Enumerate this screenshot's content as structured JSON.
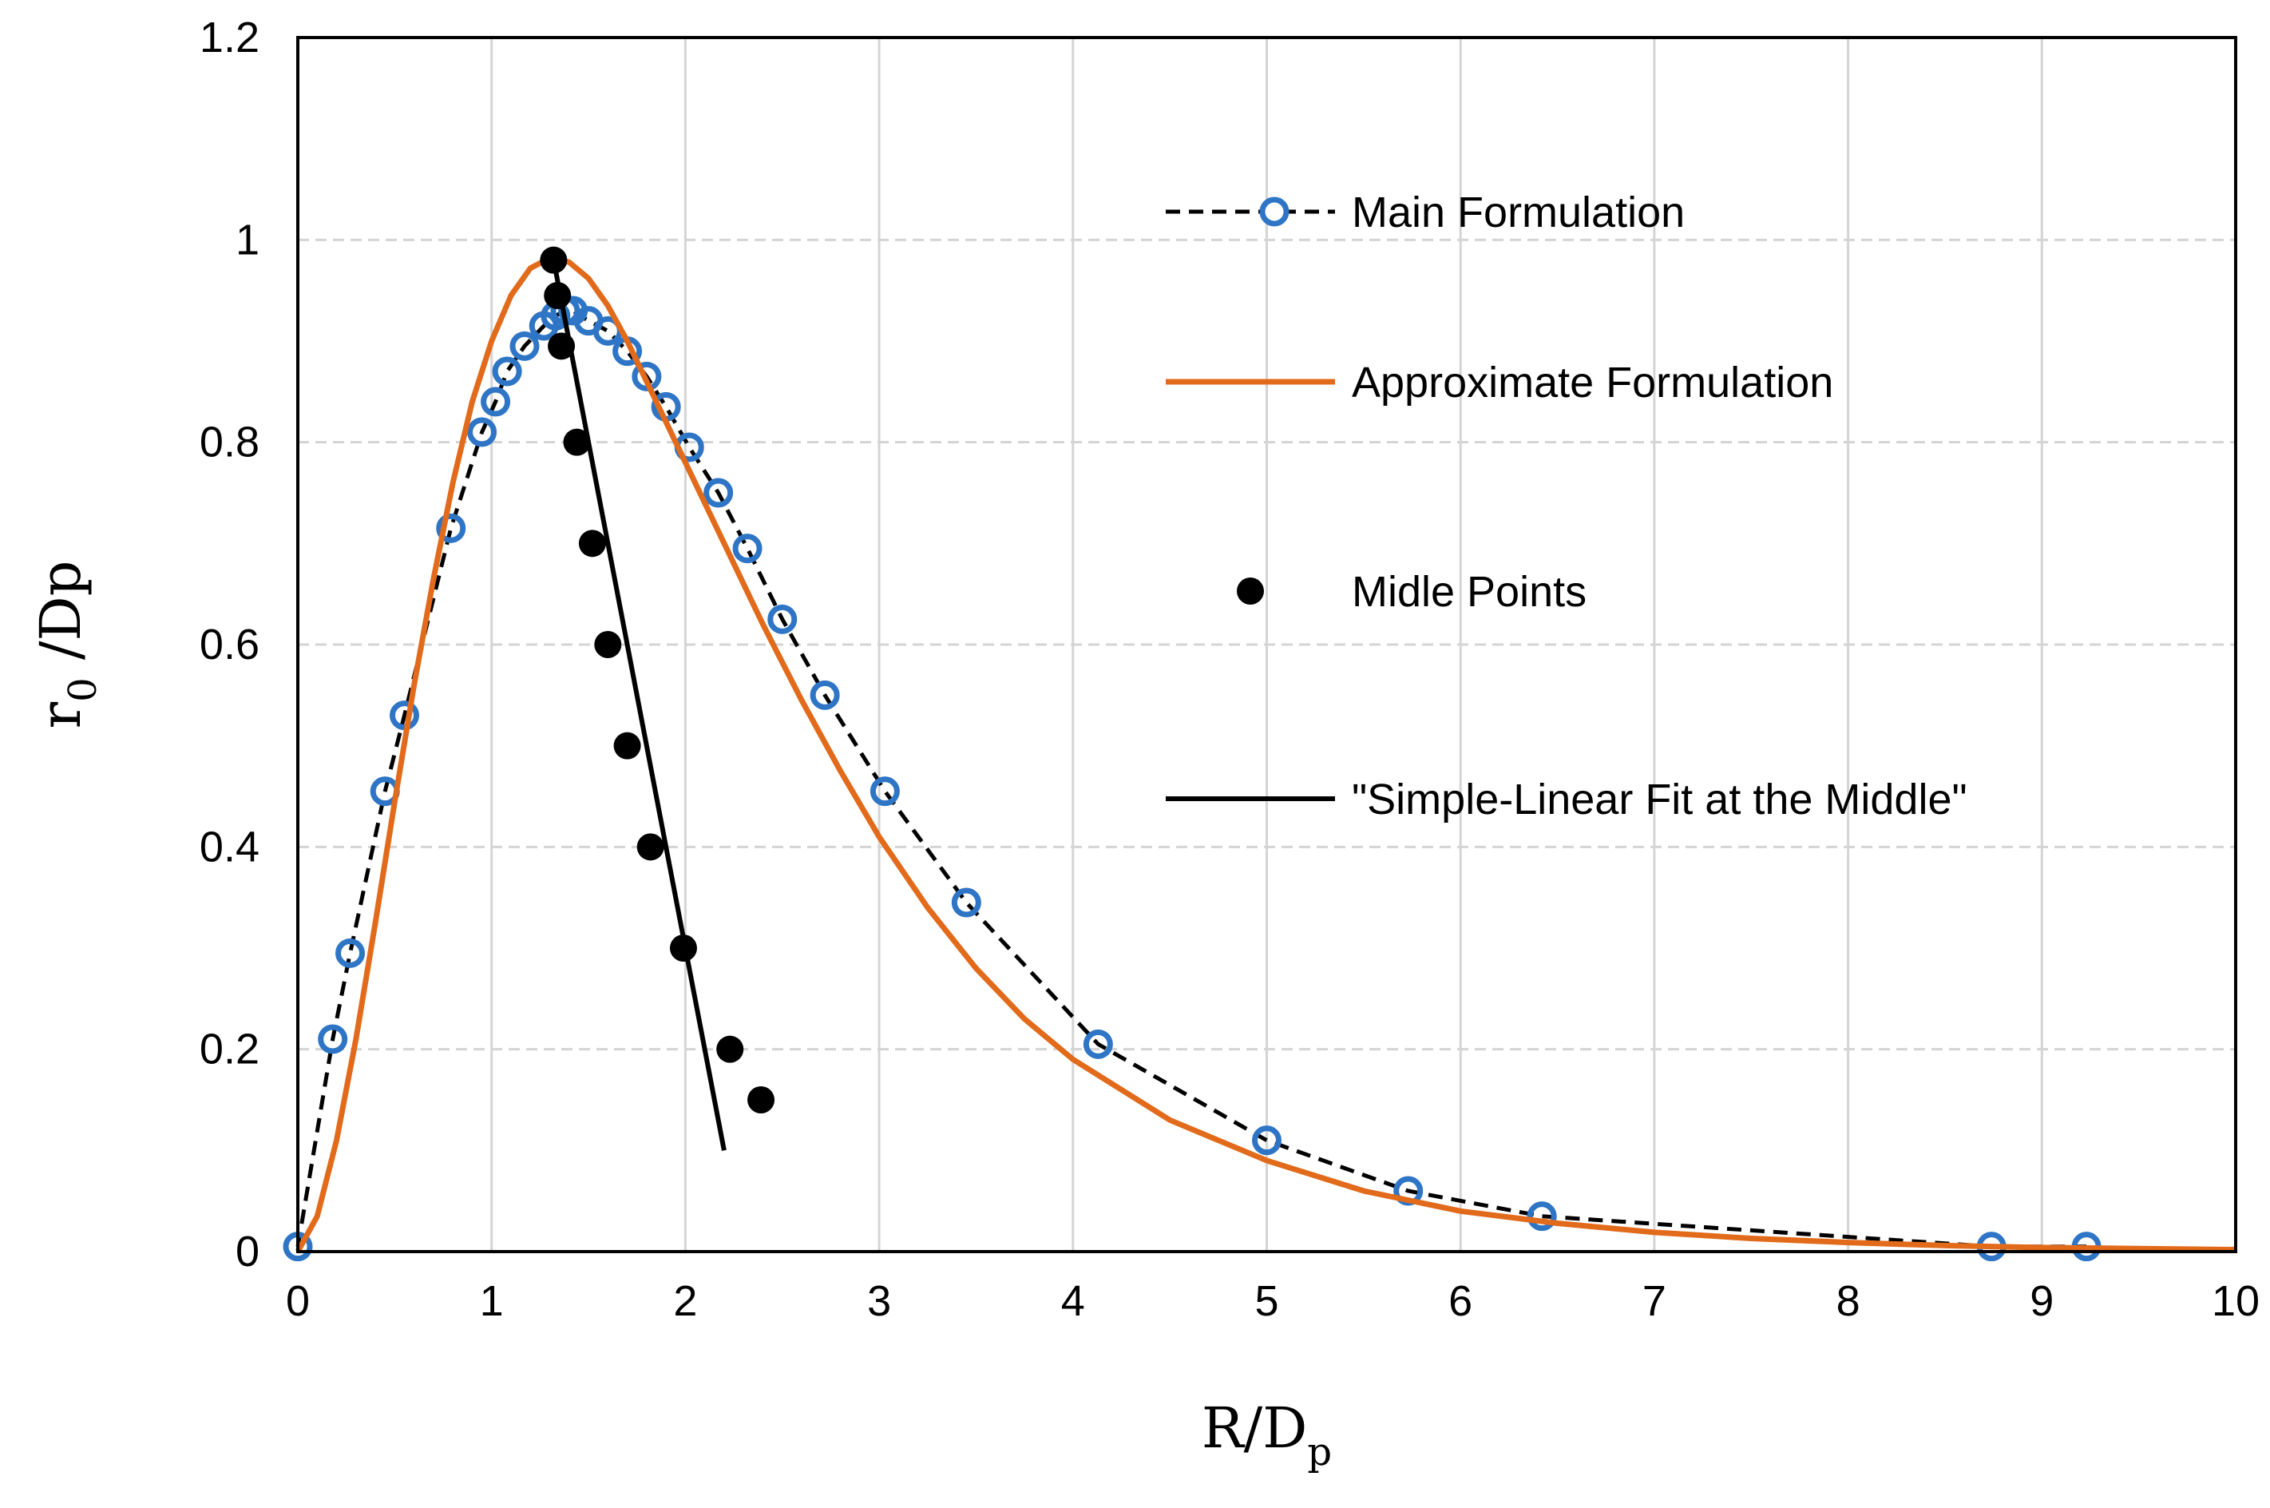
{
  "chart_data": {
    "type": "line",
    "title": "",
    "xlabel": "R/D",
    "xlabel_sub": "p",
    "ylabel": "r",
    "ylabel_sub": "0",
    "ylabel_rest": " /Dp",
    "xlim": [
      0,
      10
    ],
    "ylim": [
      0,
      1.2
    ],
    "x_ticks": [
      0,
      1,
      2,
      3,
      4,
      5,
      6,
      7,
      8,
      9,
      10
    ],
    "x_tick_labels": [
      "0",
      "1",
      "2",
      "3",
      "4",
      "5",
      "6",
      "7",
      "8",
      "9",
      "10"
    ],
    "y_ticks": [
      0,
      0.2,
      0.4,
      0.6,
      0.8,
      1,
      1.2
    ],
    "y_tick_labels": [
      "0",
      "0.2",
      "0.4",
      "0.6",
      "0.8",
      "1",
      "1.2"
    ],
    "grid": true,
    "legend_position": "top-right",
    "series": [
      {
        "name": "Main Formulation",
        "style": "dashed-line-open-circles",
        "color": "#000000",
        "marker_color": "#2e75c6",
        "x": [
          0,
          0.18,
          0.27,
          0.45,
          0.55,
          0.79,
          0.95,
          1.02,
          1.08,
          1.17,
          1.27,
          1.33,
          1.38,
          1.42,
          1.5,
          1.6,
          1.7,
          1.8,
          1.9,
          2.02,
          2.17,
          2.32,
          2.5,
          2.72,
          3.03,
          3.45,
          4.13,
          5.0,
          5.73,
          6.42,
          8.74,
          9.23
        ],
        "y": [
          0.005,
          0.21,
          0.295,
          0.455,
          0.53,
          0.715,
          0.81,
          0.84,
          0.87,
          0.895,
          0.915,
          0.925,
          0.93,
          0.93,
          0.92,
          0.91,
          0.89,
          0.865,
          0.835,
          0.795,
          0.75,
          0.695,
          0.625,
          0.55,
          0.455,
          0.345,
          0.205,
          0.11,
          0.06,
          0.035,
          0.005,
          0.005
        ]
      },
      {
        "name": "Approximate Formulation",
        "style": "solid-line",
        "color": "#e26a1b",
        "x": [
          0,
          0.1,
          0.2,
          0.3,
          0.4,
          0.5,
          0.6,
          0.7,
          0.8,
          0.9,
          1.0,
          1.1,
          1.2,
          1.3,
          1.4,
          1.5,
          1.6,
          1.7,
          1.8,
          1.9,
          2.0,
          2.2,
          2.4,
          2.6,
          2.8,
          3.0,
          3.25,
          3.5,
          3.75,
          4.0,
          4.5,
          5.0,
          5.5,
          6.0,
          6.5,
          7.0,
          7.5,
          8.0,
          8.5,
          9.0,
          9.5,
          10.0
        ],
        "y": [
          0,
          0.035,
          0.11,
          0.21,
          0.325,
          0.445,
          0.56,
          0.665,
          0.76,
          0.84,
          0.9,
          0.945,
          0.972,
          0.982,
          0.978,
          0.962,
          0.935,
          0.9,
          0.86,
          0.82,
          0.78,
          0.7,
          0.62,
          0.545,
          0.475,
          0.41,
          0.34,
          0.28,
          0.23,
          0.19,
          0.13,
          0.09,
          0.06,
          0.04,
          0.028,
          0.019,
          0.013,
          0.009,
          0.006,
          0.004,
          0.003,
          0.002
        ]
      },
      {
        "name": "Midle Points",
        "style": "filled-circles",
        "color": "#000000",
        "x": [
          1.32,
          1.34,
          1.36,
          1.44,
          1.52,
          1.6,
          1.7,
          1.82,
          1.99,
          2.23,
          2.39
        ],
        "y": [
          0.98,
          0.945,
          0.895,
          0.8,
          0.7,
          0.6,
          0.5,
          0.4,
          0.3,
          0.2,
          0.15
        ]
      },
      {
        "name": "\"Simple-Linear Fit at the Middle\"",
        "style": "solid-line",
        "color": "#000000",
        "x": [
          1.32,
          2.2
        ],
        "y": [
          0.98,
          0.1
        ]
      }
    ]
  }
}
